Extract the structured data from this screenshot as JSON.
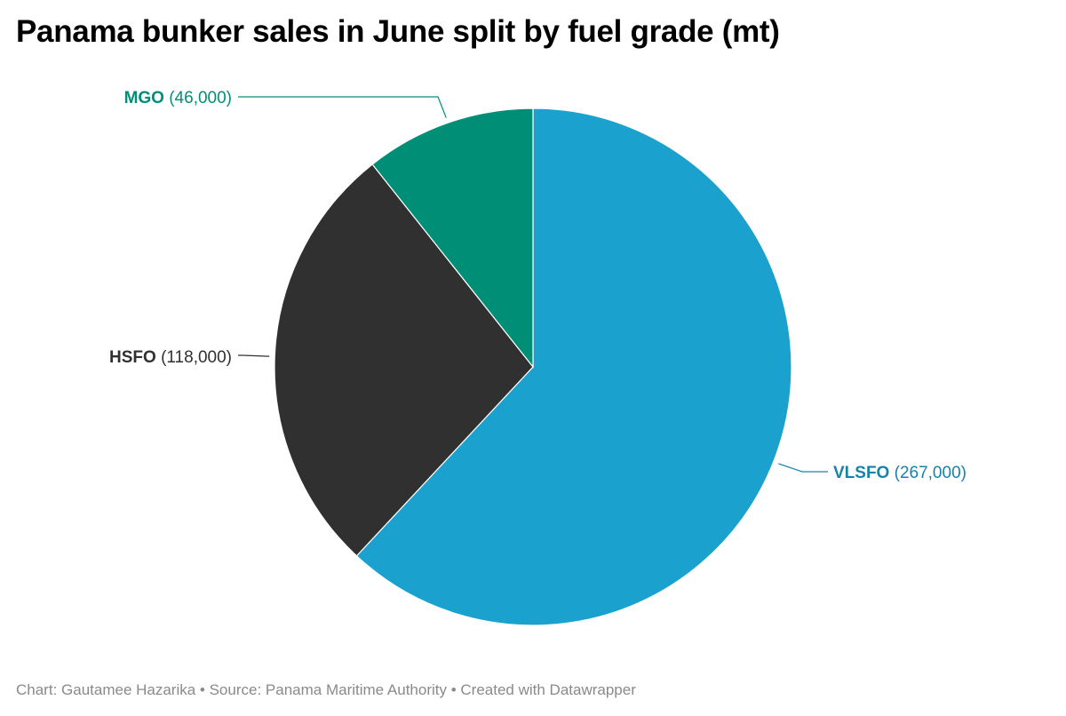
{
  "title": "Panama bunker sales in June split by fuel grade (mt)",
  "chart_data": {
    "type": "pie",
    "title": "Panama bunker sales in June split by fuel grade (mt)",
    "slices": [
      {
        "label": "VLSFO",
        "value": 267000,
        "display": "(267,000)",
        "color": "#1aa1ce",
        "label_color": "#1782ab"
      },
      {
        "label": "HSFO",
        "value": 118000,
        "display": "(118,000)",
        "color": "#303030",
        "label_color": "#303030"
      },
      {
        "label": "MGO",
        "value": 46000,
        "display": "(46,000)",
        "color": "#008f76",
        "label_color": "#008f76"
      }
    ]
  },
  "footer": {
    "text": "Chart: Gautamee Hazarika • Source: Panama Maritime Authority • Created with Datawrapper"
  }
}
